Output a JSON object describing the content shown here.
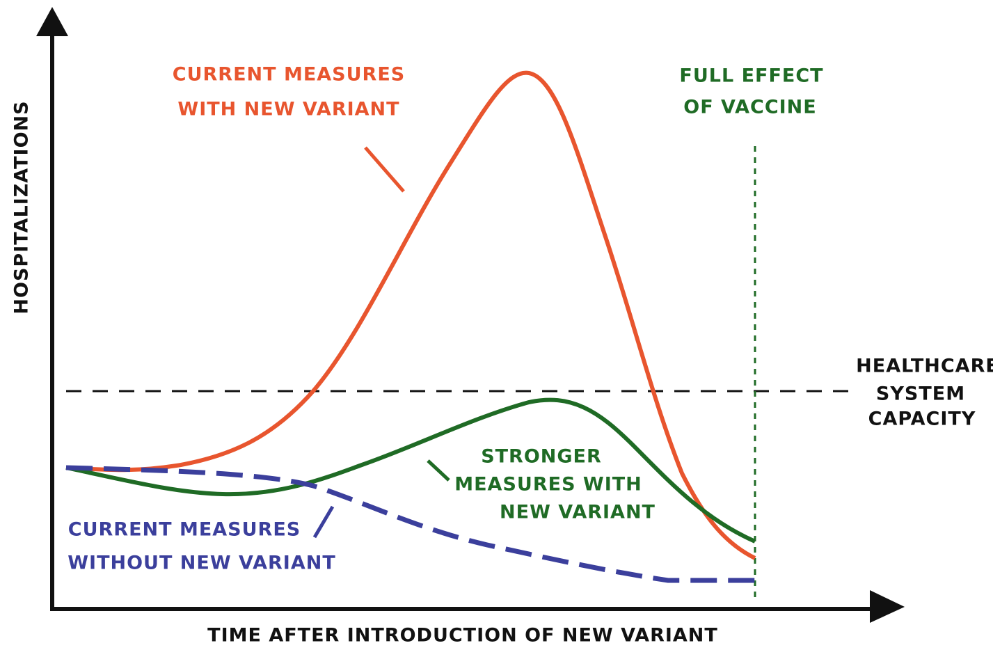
{
  "axes": {
    "y_label": "HOSPITALIZATIONS",
    "x_label": "TIME AFTER INTRODUCTION OF NEW VARIANT"
  },
  "annotations": {
    "current_with_variant": [
      "CURRENT MEASURES",
      "WITH NEW VARIANT"
    ],
    "vaccine": [
      "FULL EFFECT",
      "OF VACCINE"
    ],
    "capacity": [
      "HEALTHCARE",
      "SYSTEM",
      "CAPACITY"
    ],
    "stronger_with_variant": [
      "STRONGER",
      "MEASURES WITH",
      "NEW VARIANT"
    ],
    "current_without_variant": [
      "CURRENT MEASURES",
      "WITHOUT NEW VARIANT"
    ]
  }
}
